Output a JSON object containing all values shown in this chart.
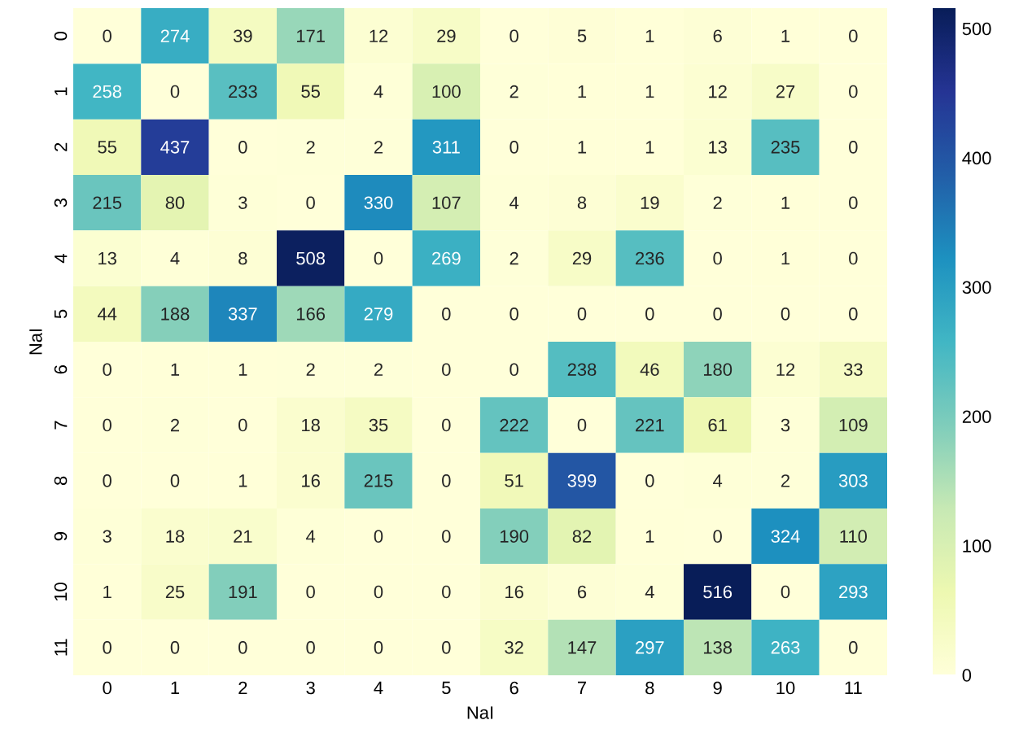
{
  "chart_data": {
    "type": "heatmap",
    "xlabel": "NaI",
    "ylabel": "NaI",
    "categories": [
      "0",
      "1",
      "2",
      "3",
      "4",
      "5",
      "6",
      "7",
      "8",
      "9",
      "10",
      "11"
    ],
    "y_categories": [
      "0",
      "1",
      "2",
      "3",
      "4",
      "5",
      "6",
      "7",
      "8",
      "9",
      "10",
      "11"
    ],
    "cells": [
      [
        0,
        274,
        39,
        171,
        12,
        29,
        0,
        5,
        1,
        6,
        1,
        0
      ],
      [
        258,
        0,
        233,
        55,
        4,
        100,
        2,
        1,
        1,
        12,
        27,
        0
      ],
      [
        55,
        437,
        0,
        2,
        2,
        311,
        0,
        1,
        1,
        13,
        235,
        0
      ],
      [
        215,
        80,
        3,
        0,
        330,
        107,
        4,
        8,
        19,
        2,
        1,
        0
      ],
      [
        13,
        4,
        8,
        508,
        0,
        269,
        2,
        29,
        236,
        0,
        1,
        0
      ],
      [
        44,
        188,
        337,
        166,
        279,
        0,
        0,
        0,
        0,
        0,
        0,
        0
      ],
      [
        0,
        1,
        1,
        2,
        2,
        0,
        0,
        238,
        46,
        180,
        12,
        33
      ],
      [
        0,
        2,
        0,
        18,
        35,
        0,
        222,
        0,
        221,
        61,
        3,
        109
      ],
      [
        0,
        0,
        1,
        16,
        215,
        0,
        51,
        399,
        0,
        4,
        2,
        303
      ],
      [
        3,
        18,
        21,
        4,
        0,
        0,
        190,
        82,
        1,
        0,
        324,
        110
      ],
      [
        1,
        25,
        191,
        0,
        0,
        0,
        16,
        6,
        4,
        516,
        0,
        293
      ],
      [
        0,
        0,
        0,
        0,
        0,
        0,
        32,
        147,
        297,
        138,
        263,
        0
      ]
    ],
    "clim": [
      0,
      516
    ],
    "cticks": [
      0,
      100,
      200,
      300,
      400,
      500
    ],
    "data_labels": true,
    "grid": false
  }
}
